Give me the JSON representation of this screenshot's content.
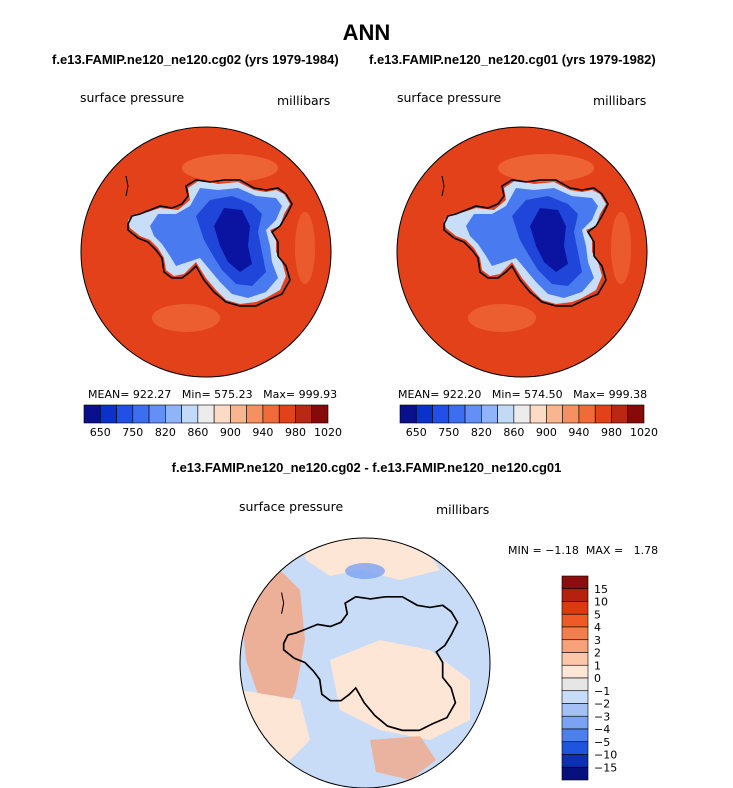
{
  "title": "ANN",
  "panels": [
    {
      "case": "f.e13.FAMIP.ne120_ne120.cg02 (yrs 1979-1984)",
      "variable": "surface pressure",
      "units": "millibars",
      "stats": {
        "mean_label": "MEAN=",
        "mean": "922.27",
        "min_label": "Min=",
        "min": "575.23",
        "max_label": "Max=",
        "max": "999.93"
      }
    },
    {
      "case": "f.e13.FAMIP.ne120_ne120.cg01 (yrs 1979-1982)",
      "variable": "surface pressure",
      "units": "millibars",
      "stats": {
        "mean_label": "MEAN=",
        "mean": "922.20",
        "min_label": "Min=",
        "min": "574.50",
        "max_label": "Max=",
        "max": "999.38"
      }
    }
  ],
  "diff_panel": {
    "title": "f.e13.FAMIP.ne120_ne120.cg02 - f.e13.FAMIP.ne120_ne120.cg01",
    "variable": "surface pressure",
    "units": "millibars",
    "stats": {
      "min_label": "MIN =",
      "min": "−1.18",
      "max_label": "MAX =",
      "max": "1.78"
    }
  },
  "chart_data": [
    {
      "type": "heatmap",
      "title": "f.e13.FAMIP.ne120_ne120.cg02 (yrs 1979-1984)",
      "variable": "surface pressure",
      "units": "millibars",
      "projection": "south polar stereographic",
      "stats": {
        "mean": 922.27,
        "min": 575.23,
        "max": 999.93
      },
      "colorbar": {
        "orientation": "horizontal",
        "levels": [
          650,
          700,
          750,
          800,
          820,
          840,
          860,
          880,
          900,
          920,
          940,
          960,
          980,
          1000,
          1020
        ],
        "tick_labels": [
          "650",
          "750",
          "820",
          "860",
          "900",
          "940",
          "980",
          "1020"
        ],
        "colors": [
          "#0a0f8c",
          "#0a32c8",
          "#2050e6",
          "#3c6ef0",
          "#6490f5",
          "#90b4f8",
          "#c2daf8",
          "#ececec",
          "#fbdbc6",
          "#f8b590",
          "#f59060",
          "#f06b3a",
          "#e3411a",
          "#b82812",
          "#860a0a"
        ]
      }
    },
    {
      "type": "heatmap",
      "title": "f.e13.FAMIP.ne120_ne120.cg01 (yrs 1979-1982)",
      "variable": "surface pressure",
      "units": "millibars",
      "projection": "south polar stereographic",
      "stats": {
        "mean": 922.2,
        "min": 574.5,
        "max": 999.38
      },
      "colorbar": {
        "orientation": "horizontal",
        "levels": [
          650,
          700,
          750,
          800,
          820,
          840,
          860,
          880,
          900,
          920,
          940,
          960,
          980,
          1000,
          1020
        ],
        "tick_labels": [
          "650",
          "750",
          "820",
          "860",
          "900",
          "940",
          "980",
          "1020"
        ],
        "colors": [
          "#0a0f8c",
          "#0a32c8",
          "#2050e6",
          "#3c6ef0",
          "#6490f5",
          "#90b4f8",
          "#c2daf8",
          "#ececec",
          "#fbdbc6",
          "#f8b590",
          "#f59060",
          "#f06b3a",
          "#e3411a",
          "#b82812",
          "#860a0a"
        ]
      }
    },
    {
      "type": "heatmap",
      "title": "f.e13.FAMIP.ne120_ne120.cg02 - f.e13.FAMIP.ne120_ne120.cg01",
      "variable": "surface pressure",
      "units": "millibars",
      "projection": "south polar stereographic",
      "stats": {
        "min": -1.18,
        "max": 1.78
      },
      "colorbar": {
        "orientation": "vertical",
        "levels": [
          15,
          10,
          5,
          4,
          3,
          2,
          1,
          0,
          -1,
          -2,
          -3,
          -4,
          -5,
          -10,
          -15
        ],
        "tick_labels": [
          "15",
          "10",
          "5",
          "4",
          "3",
          "2",
          "1",
          "0",
          "−1",
          "−2",
          "−3",
          "−4",
          "−5",
          "−10",
          "−15"
        ],
        "colors": [
          "#8b0d0d",
          "#b5200f",
          "#dd3812",
          "#f05a26",
          "#f27e4e",
          "#f7a17a",
          "#fbc7a8",
          "#fde6d6",
          "#e6e6e6",
          "#c9dcf7",
          "#a3c1f4",
          "#7aa3f1",
          "#4c80ee",
          "#1f55de",
          "#0c2fb4",
          "#08107e"
        ]
      }
    }
  ]
}
